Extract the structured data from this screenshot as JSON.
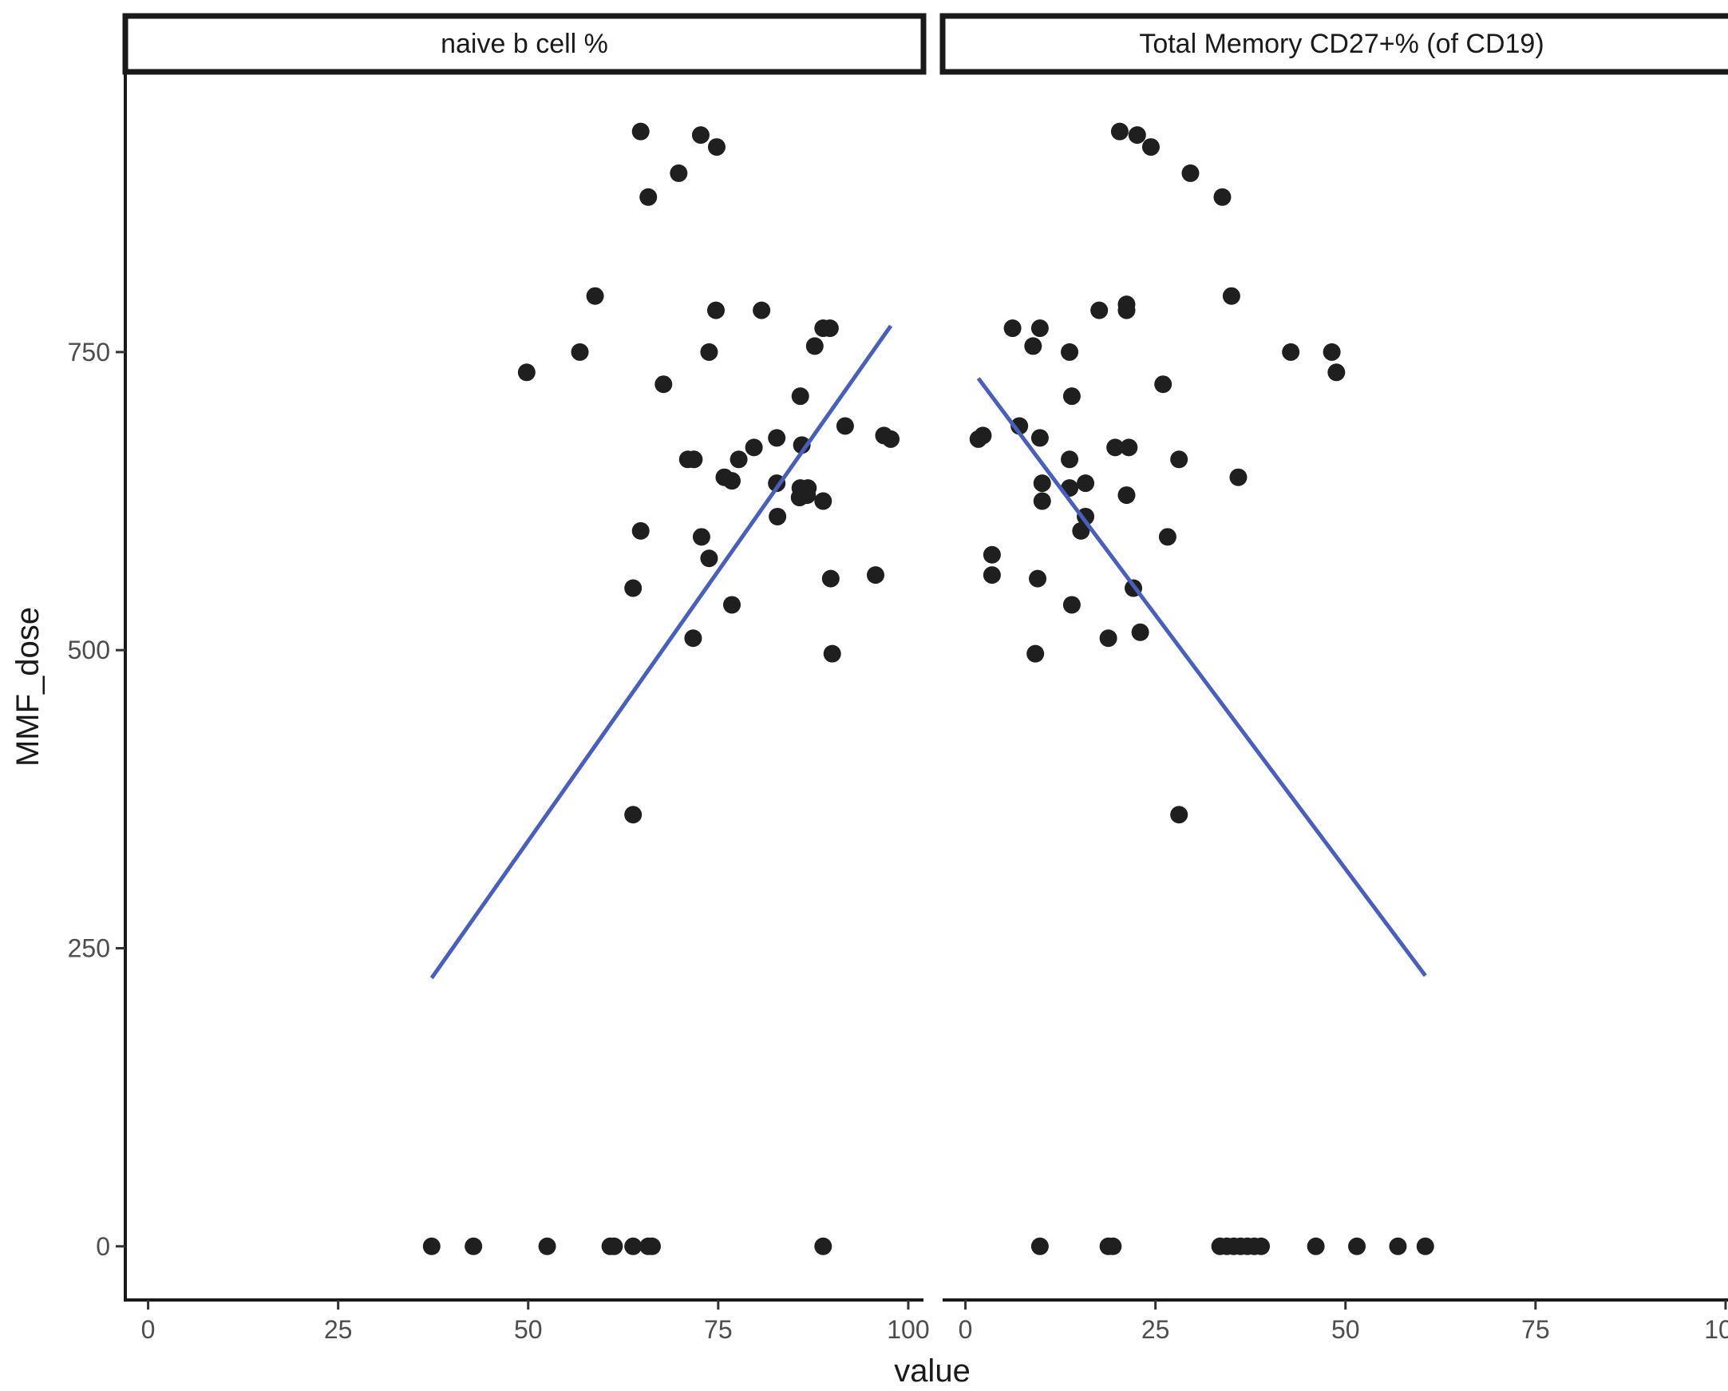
{
  "chart_data": {
    "type": "scatter",
    "xlabel": "value",
    "ylabel": "MMF_dose",
    "xlim": [
      -3,
      102
    ],
    "ylim": [
      -45,
      985
    ],
    "x_ticks": [
      0,
      25,
      50,
      75,
      100
    ],
    "x_tick_labels": [
      "0",
      "25",
      "50",
      "75",
      "100"
    ],
    "y_ticks": [
      0,
      250,
      500,
      750
    ],
    "y_tick_labels": [
      "0",
      "250",
      "500",
      "750"
    ],
    "grid": false,
    "legend": "none",
    "point_color": "#1f1f1f",
    "line_color": "#4a5fb8",
    "facets": [
      {
        "strip_label": "naive b cell %",
        "points": [
          {
            "x": 64.8,
            "y": 935
          },
          {
            "x": 72.7,
            "y": 932
          },
          {
            "x": 74.8,
            "y": 922
          },
          {
            "x": 69.8,
            "y": 900
          },
          {
            "x": 65.8,
            "y": 880
          },
          {
            "x": 58.8,
            "y": 797
          },
          {
            "x": 74.7,
            "y": 785
          },
          {
            "x": 80.7,
            "y": 785
          },
          {
            "x": 89.7,
            "y": 770
          },
          {
            "x": 88.8,
            "y": 770
          },
          {
            "x": 87.7,
            "y": 755
          },
          {
            "x": 56.8,
            "y": 750
          },
          {
            "x": 73.8,
            "y": 750
          },
          {
            "x": 49.8,
            "y": 733
          },
          {
            "x": 67.8,
            "y": 723
          },
          {
            "x": 85.8,
            "y": 713
          },
          {
            "x": 91.7,
            "y": 688
          },
          {
            "x": 96.8,
            "y": 680
          },
          {
            "x": 97.7,
            "y": 677
          },
          {
            "x": 82.7,
            "y": 678
          },
          {
            "x": 86.0,
            "y": 672
          },
          {
            "x": 79.7,
            "y": 670
          },
          {
            "x": 77.7,
            "y": 660
          },
          {
            "x": 71.0,
            "y": 660
          },
          {
            "x": 71.8,
            "y": 660
          },
          {
            "x": 75.8,
            "y": 645
          },
          {
            "x": 76.8,
            "y": 642
          },
          {
            "x": 82.7,
            "y": 640
          },
          {
            "x": 86.8,
            "y": 636
          },
          {
            "x": 85.8,
            "y": 636
          },
          {
            "x": 86.7,
            "y": 630
          },
          {
            "x": 85.7,
            "y": 628
          },
          {
            "x": 88.8,
            "y": 625
          },
          {
            "x": 82.8,
            "y": 612
          },
          {
            "x": 64.8,
            "y": 600
          },
          {
            "x": 72.8,
            "y": 595
          },
          {
            "x": 73.8,
            "y": 577
          },
          {
            "x": 95.7,
            "y": 563
          },
          {
            "x": 89.8,
            "y": 560
          },
          {
            "x": 63.8,
            "y": 552
          },
          {
            "x": 76.8,
            "y": 538
          },
          {
            "x": 71.7,
            "y": 510
          },
          {
            "x": 90.0,
            "y": 497
          },
          {
            "x": 63.8,
            "y": 362
          },
          {
            "x": 37.3,
            "y": 0
          },
          {
            "x": 42.8,
            "y": 0
          },
          {
            "x": 52.5,
            "y": 0
          },
          {
            "x": 60.8,
            "y": 0
          },
          {
            "x": 61.3,
            "y": 0
          },
          {
            "x": 63.8,
            "y": 0
          },
          {
            "x": 65.8,
            "y": 0
          },
          {
            "x": 66.3,
            "y": 0
          },
          {
            "x": 88.8,
            "y": 0
          }
        ],
        "trend": [
          {
            "x": 37.3,
            "y": 225
          },
          {
            "x": 97.7,
            "y": 772
          }
        ]
      },
      {
        "strip_label": "Total Memory CD27+% (of CD19)",
        "points": [
          {
            "x": 20.3,
            "y": 935
          },
          {
            "x": 22.6,
            "y": 932
          },
          {
            "x": 24.4,
            "y": 922
          },
          {
            "x": 29.6,
            "y": 900
          },
          {
            "x": 33.8,
            "y": 880
          },
          {
            "x": 35.0,
            "y": 797
          },
          {
            "x": 21.2,
            "y": 790
          },
          {
            "x": 21.2,
            "y": 785
          },
          {
            "x": 17.6,
            "y": 785
          },
          {
            "x": 6.2,
            "y": 770
          },
          {
            "x": 9.8,
            "y": 770
          },
          {
            "x": 8.9,
            "y": 755
          },
          {
            "x": 13.7,
            "y": 750
          },
          {
            "x": 42.8,
            "y": 750
          },
          {
            "x": 48.2,
            "y": 750
          },
          {
            "x": 48.8,
            "y": 733
          },
          {
            "x": 26.0,
            "y": 723
          },
          {
            "x": 14.0,
            "y": 713
          },
          {
            "x": 7.1,
            "y": 688
          },
          {
            "x": 2.3,
            "y": 680
          },
          {
            "x": 1.7,
            "y": 677
          },
          {
            "x": 9.8,
            "y": 678
          },
          {
            "x": 19.7,
            "y": 670
          },
          {
            "x": 21.5,
            "y": 670
          },
          {
            "x": 13.7,
            "y": 660
          },
          {
            "x": 28.1,
            "y": 660
          },
          {
            "x": 35.9,
            "y": 645
          },
          {
            "x": 10.1,
            "y": 640
          },
          {
            "x": 15.8,
            "y": 640
          },
          {
            "x": 13.7,
            "y": 636
          },
          {
            "x": 21.2,
            "y": 630
          },
          {
            "x": 10.1,
            "y": 625
          },
          {
            "x": 15.8,
            "y": 612
          },
          {
            "x": 15.2,
            "y": 600
          },
          {
            "x": 26.6,
            "y": 595
          },
          {
            "x": 3.5,
            "y": 580
          },
          {
            "x": 3.5,
            "y": 563
          },
          {
            "x": 9.5,
            "y": 560
          },
          {
            "x": 22.1,
            "y": 552
          },
          {
            "x": 14.0,
            "y": 538
          },
          {
            "x": 23.0,
            "y": 515
          },
          {
            "x": 18.8,
            "y": 510
          },
          {
            "x": 9.2,
            "y": 497
          },
          {
            "x": 28.1,
            "y": 362
          },
          {
            "x": 9.8,
            "y": 0
          },
          {
            "x": 18.8,
            "y": 0
          },
          {
            "x": 19.4,
            "y": 0
          },
          {
            "x": 33.5,
            "y": 0
          },
          {
            "x": 34.4,
            "y": 0
          },
          {
            "x": 35.3,
            "y": 0
          },
          {
            "x": 36.2,
            "y": 0
          },
          {
            "x": 37.1,
            "y": 0
          },
          {
            "x": 38.0,
            "y": 0
          },
          {
            "x": 38.9,
            "y": 0
          },
          {
            "x": 46.1,
            "y": 0
          },
          {
            "x": 51.5,
            "y": 0
          },
          {
            "x": 56.9,
            "y": 0
          },
          {
            "x": 60.5,
            "y": 0
          }
        ],
        "trend": [
          {
            "x": 1.7,
            "y": 728
          },
          {
            "x": 60.5,
            "y": 227
          }
        ]
      }
    ]
  }
}
